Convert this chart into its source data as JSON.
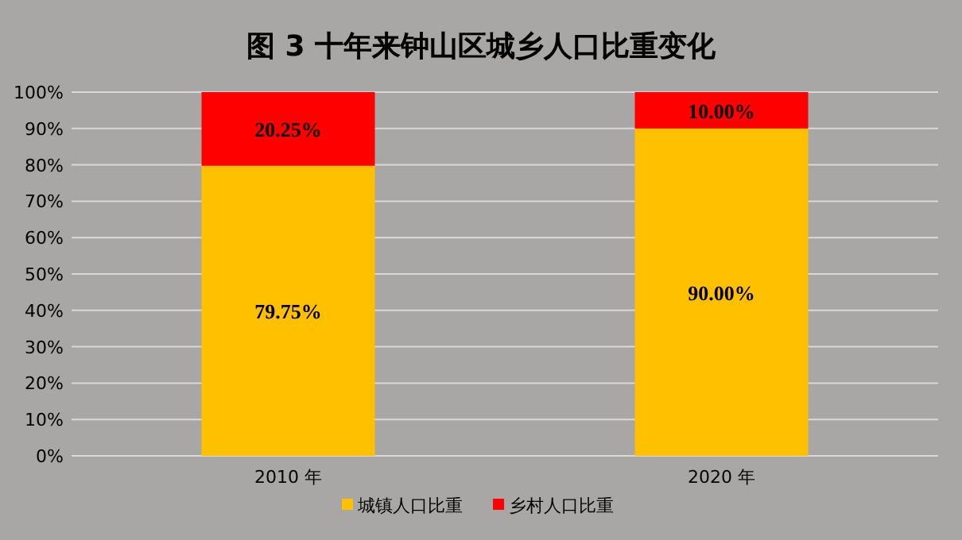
{
  "chart_data": {
    "type": "bar",
    "title": "图 3  十年来钟山区城乡人口比重变化",
    "categories": [
      "2010 年",
      "2020 年"
    ],
    "stacked": true,
    "series": [
      {
        "name": "城镇人口比重",
        "color": "#ffc000",
        "values": [
          79.75,
          90.0
        ],
        "value_labels": [
          "79.75%",
          "90.00%"
        ]
      },
      {
        "name": "乡村人口比重",
        "color": "#ff0000",
        "values": [
          20.25,
          10.0
        ],
        "value_labels": [
          "20.25%",
          "10.00%"
        ]
      }
    ],
    "ylim": [
      0,
      100
    ],
    "yticks": [
      {
        "value": 0,
        "label": "0%"
      },
      {
        "value": 10,
        "label": "10%"
      },
      {
        "value": 20,
        "label": "20%"
      },
      {
        "value": 30,
        "label": "30%"
      },
      {
        "value": 40,
        "label": "40%"
      },
      {
        "value": 50,
        "label": "50%"
      },
      {
        "value": 60,
        "label": "60%"
      },
      {
        "value": 70,
        "label": "70%"
      },
      {
        "value": 80,
        "label": "80%"
      },
      {
        "value": 90,
        "label": "90%"
      },
      {
        "value": 100,
        "label": "100%"
      }
    ],
    "grid": "y",
    "legend": "bottom"
  }
}
